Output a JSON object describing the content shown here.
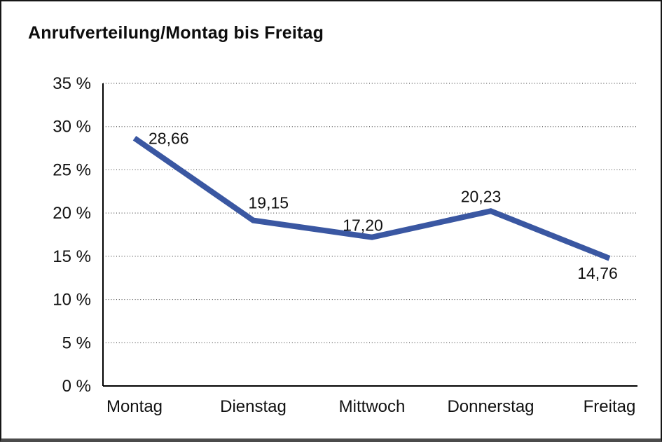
{
  "title": "Anrufverteilung/Montag bis Freitag",
  "colors": {
    "line": "#3A57A2",
    "grid": "#555555",
    "axis": "#000000",
    "text": "#111111",
    "frame_border": "#161616",
    "frame_bottom_border": "#4b4b4b",
    "background": "#ffffff"
  },
  "chart_data": {
    "type": "line",
    "title": "Anrufverteilung/Montag bis Freitag",
    "categories": [
      "Montag",
      "Dienstag",
      "Mittwoch",
      "Donnerstag",
      "Freitag"
    ],
    "values": [
      28.66,
      19.15,
      17.2,
      20.23,
      14.76
    ],
    "value_labels": [
      "28,66",
      "19,15",
      "17,20",
      "20,23",
      "14,76"
    ],
    "xlabel": "",
    "ylabel": "",
    "ylim": [
      0,
      35
    ],
    "ytick_step": 5,
    "yticks": [
      0,
      5,
      10,
      15,
      20,
      25,
      30,
      35
    ],
    "ytick_labels": [
      "0 %",
      "5 %",
      "10 %",
      "15 %",
      "20 %",
      "25 %",
      "30 %",
      "35 %"
    ],
    "grid": "horizontal-dotted",
    "legend_position": "none",
    "line_color": "#3A57A2"
  }
}
